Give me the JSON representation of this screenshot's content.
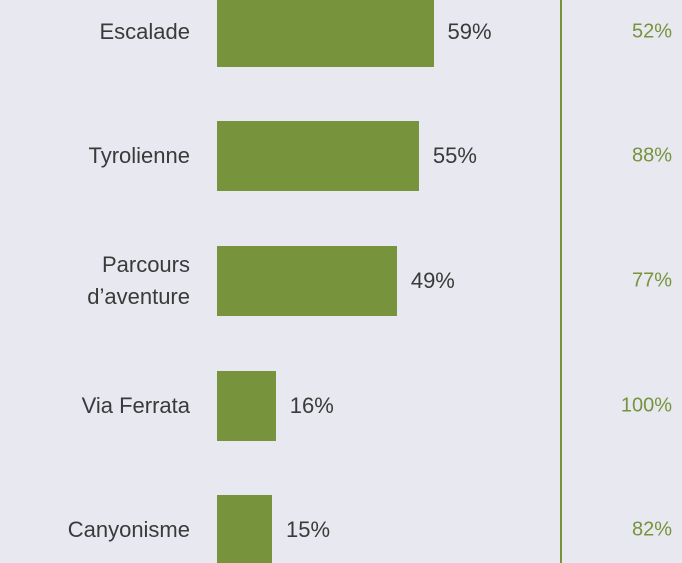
{
  "chart_data": {
    "type": "bar",
    "orientation": "horizontal",
    "categories": [
      "Escalade",
      "Tyrolienne",
      "Parcours d’aventure",
      "Via Ferrata",
      "Canyonisme"
    ],
    "series": [
      {
        "color": "#77933c",
        "values": [
          59,
          55,
          49,
          16,
          15
        ],
        "value_labels": [
          "59%",
          "55%",
          "49%",
          "16%",
          "15%"
        ]
      },
      {
        "color": "#77933c",
        "values": [
          52,
          88,
          77,
          100,
          82
        ],
        "value_labels": [
          "52%",
          "88%",
          "77%",
          "100%",
          "82%"
        ]
      }
    ]
  }
}
